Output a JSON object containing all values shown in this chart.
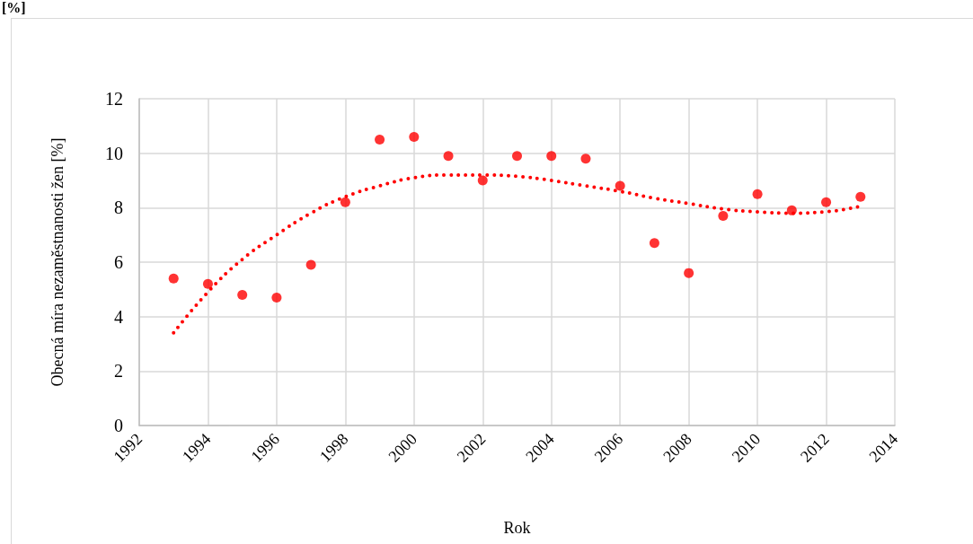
{
  "chart_data": {
    "type": "scatter",
    "xlabel": "Rok",
    "ylabel": "Obecná míra nezaměstnanosti žen [%]",
    "annotations": [
      "[%]"
    ],
    "xlim": [
      1992,
      2014
    ],
    "xticks": [
      1992,
      1994,
      1996,
      1998,
      2000,
      2002,
      2004,
      2006,
      2008,
      2010,
      2012,
      2014
    ],
    "ylim": [
      0,
      12
    ],
    "yticks": [
      0,
      2,
      4,
      6,
      8,
      10,
      12
    ],
    "grid": true,
    "marker": "circle",
    "series": [
      {
        "color": "#ff0000",
        "x": [
          1993,
          1994,
          1995,
          1996,
          1997,
          1998,
          1999,
          2000,
          2001,
          2002,
          2003,
          2004,
          2005,
          2006,
          2007,
          2008,
          2009,
          2010,
          2011,
          2012,
          2013
        ],
        "values": [
          5.4,
          5.2,
          4.8,
          4.7,
          5.9,
          8.2,
          10.5,
          10.6,
          9.9,
          9.0,
          9.9,
          9.9,
          9.8,
          8.8,
          6.7,
          5.6,
          7.7,
          8.5,
          7.9,
          8.2,
          8.4
        ]
      },
      {
        "type": "line",
        "color": "#ff0000",
        "line_style": "dotted",
        "marker": "none",
        "x": [
          1993,
          1994,
          1995,
          1996,
          1997,
          1998,
          1999,
          2000,
          2001,
          2002,
          2003,
          2004,
          2005,
          2006,
          2007,
          2008,
          2009,
          2010,
          2011,
          2012,
          2013
        ],
        "values": [
          3.4,
          4.9,
          6.1,
          7.0,
          7.8,
          8.4,
          8.8,
          9.1,
          9.2,
          9.2,
          9.15,
          9.0,
          8.8,
          8.6,
          8.35,
          8.15,
          7.95,
          7.85,
          7.8,
          7.85,
          8.05
        ]
      }
    ]
  }
}
